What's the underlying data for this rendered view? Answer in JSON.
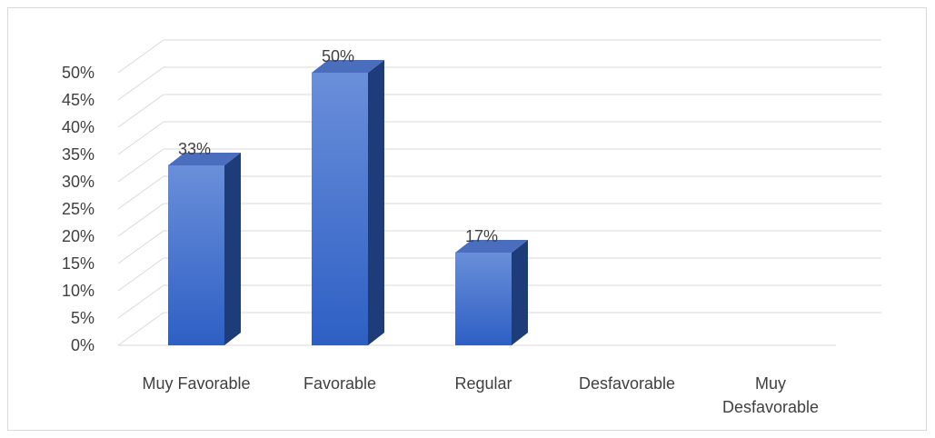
{
  "chart_data": {
    "type": "bar",
    "style": "3d-column",
    "categories": [
      "Muy Favorable",
      "Favorable",
      "Regular",
      "Desfavorable",
      "Muy Desfavorable"
    ],
    "values": [
      33,
      50,
      17,
      null,
      null
    ],
    "data_labels": [
      "33%",
      "50%",
      "17%",
      "",
      ""
    ],
    "ylim": [
      0,
      50
    ],
    "y_ticks": [
      "0%",
      "5%",
      "10%",
      "15%",
      "20%",
      "25%",
      "30%",
      "35%",
      "40%",
      "45%",
      "50%"
    ],
    "grid": true,
    "legend": "none",
    "title": "",
    "xlabel": "",
    "ylabel": "",
    "colors": {
      "bar_front_top": "#6a8fda",
      "bar_front_bottom": "#2d5fc4",
      "bar_side": "#1f3c7a",
      "bar_top": "#4a6dbd",
      "grid": "#d9d9d9",
      "text": "#404040"
    }
  }
}
